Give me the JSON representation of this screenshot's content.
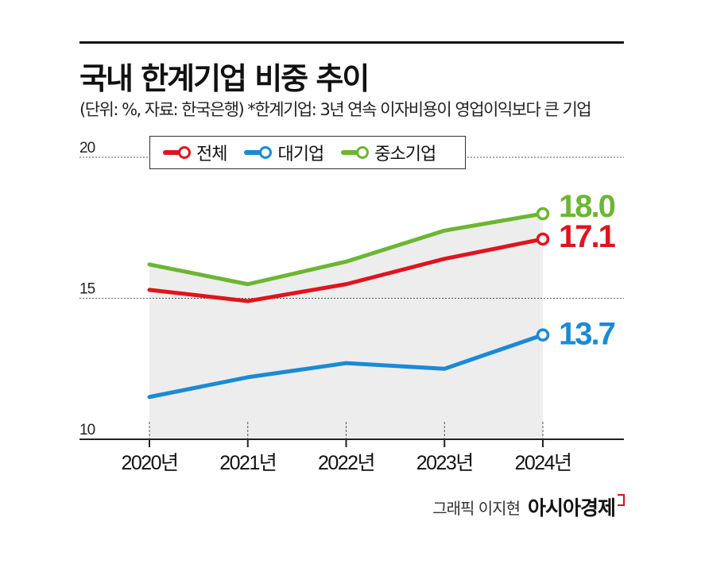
{
  "header": {
    "title": "국내 한계기업 비중 추이",
    "subtitle": "(단위: %, 자료: 한국은행) *한계기업: 3년 연속 이자비용이 영업이익보다 큰 기업"
  },
  "credit": {
    "text": "그래픽 이지현",
    "brand": "아시아경제"
  },
  "chart_data": {
    "type": "line",
    "x": [
      "2020년",
      "2021년",
      "2022년",
      "2023년",
      "2024년"
    ],
    "ylim": [
      10,
      20
    ],
    "yticks": [
      "20",
      "15",
      "10"
    ],
    "grid": true,
    "legend_position": "top",
    "series": [
      {
        "name": "전체",
        "color": "#e0141e",
        "values": [
          15.3,
          14.9,
          15.5,
          16.4,
          17.1
        ],
        "end_label": "17.1"
      },
      {
        "name": "대기업",
        "color": "#1a8ad4",
        "values": [
          11.5,
          12.2,
          12.7,
          12.5,
          13.7
        ],
        "end_label": "13.7"
      },
      {
        "name": "중소기업",
        "color": "#6cb632",
        "values": [
          16.2,
          15.5,
          16.3,
          17.4,
          18.0
        ],
        "end_label": "18.0"
      }
    ]
  }
}
